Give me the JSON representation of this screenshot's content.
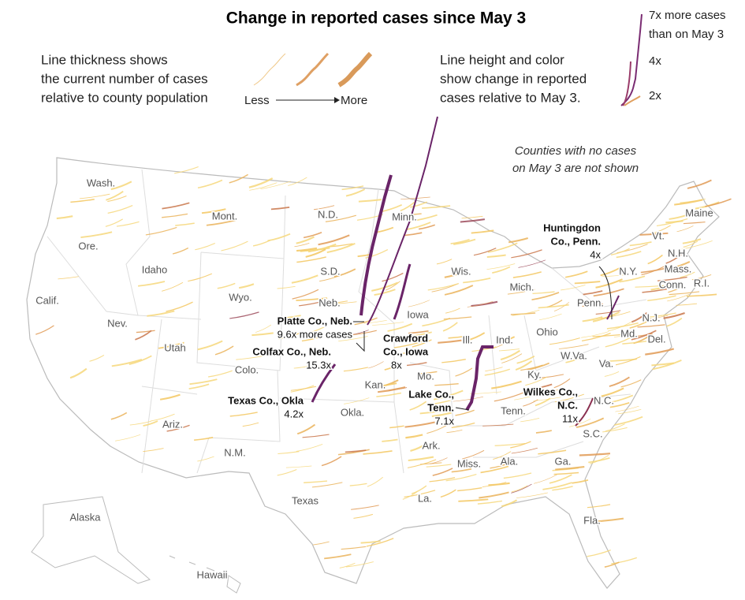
{
  "title": "Change in reported cases since May 3",
  "legend": {
    "thickness": {
      "text": [
        "Line thickness shows",
        "the current number of cases",
        "relative to county population"
      ],
      "less": "Less",
      "more": "More"
    },
    "height": {
      "text": [
        "Line height and color",
        "show change in reported",
        "cases relative to May 3."
      ]
    },
    "scale": [
      "7x more cases",
      "than on May 3",
      "4x",
      "2x"
    ]
  },
  "note": [
    "Counties with no cases",
    "on May 3 are not shown"
  ],
  "states": [
    "Wash.",
    "Mont.",
    "N.D.",
    "Minn.",
    "Ore.",
    "Idaho",
    "S.D.",
    "Wyo.",
    "Neb.",
    "Wis.",
    "Mich.",
    "Calif.",
    "Nev.",
    "Utah",
    "Colo.",
    "Iowa",
    "Ill.",
    "Ind.",
    "Ohio",
    "Penn.",
    "N.Y.",
    "Vt.",
    "N.H.",
    "Maine",
    "Mass.",
    "Conn.",
    "R.I.",
    "N.J.",
    "Md.",
    "Del.",
    "W.Va.",
    "Va.",
    "Ky.",
    "Kan.",
    "Mo.",
    "Tenn.",
    "N.C.",
    "S.C.",
    "Okla.",
    "Ark.",
    "Miss.",
    "Ala.",
    "Ga.",
    "Ariz.",
    "N.M.",
    "Texas",
    "La.",
    "Fla.",
    "Alaska",
    "Hawaii"
  ],
  "annotations": [
    {
      "name": [
        "Huntingdon",
        "Co., Penn."
      ],
      "value": "4x"
    },
    {
      "name": [
        "Platte Co., Neb."
      ],
      "value": "9.6x more cases"
    },
    {
      "name": [
        "Colfax Co., Neb."
      ],
      "value": "15.3x"
    },
    {
      "name": [
        "Crawford",
        "Co., Iowa"
      ],
      "value": "8x"
    },
    {
      "name": [
        "Texas Co., Okla"
      ],
      "value": "4.2x"
    },
    {
      "name": [
        "Lake Co.,",
        "Tenn."
      ],
      "value": "7.1x"
    },
    {
      "name": [
        "Wilkes Co.,",
        "N.C."
      ],
      "value": "11x"
    }
  ]
}
